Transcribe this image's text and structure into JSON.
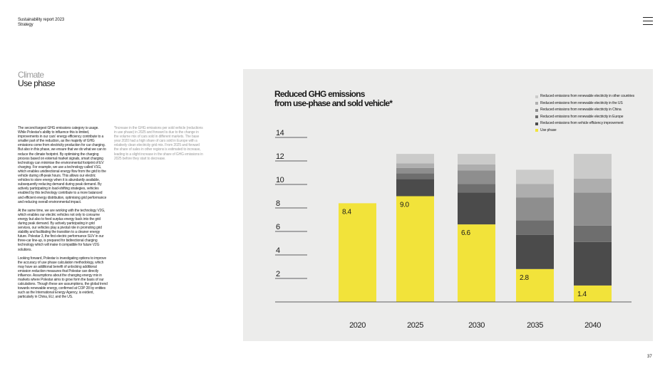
{
  "header": {
    "report": "Sustainability report 2023",
    "section": "Strategy"
  },
  "section_title": {
    "line1": "Climate",
    "line2": "Use phase"
  },
  "body_paragraphs": [
    "The second-largest GHG emissions category is usage. While Polestar's ability to influence this is limited, improvements in our cars' energy efficiency contribute to a smaller part of the reduction, as the majority of GHG emissions come from electricity production for car charging. But also in this phase, we ensure that we do what we can to reduce the climate footprint. By optimising the charging process based on external market signals, smart charging technology can minimise the environmental footprint of EV charging. For example, we use a technology called V1G, which enables unidirectional energy flow from the grid to the vehicle during off-peak hours. This allows our electric vehicles to store energy when it is abundantly available, subsequently reducing demand during peak demand. By actively participating in load-shifting strategies, vehicles enabled by this technology contribute to a more balanced and efficient energy distribution, optimising grid performance and reducing overall environmental impact.",
    "At the same time, we are working with the technology V2G, which enables our electric vehicles not only to consume energy but also to feed surplus energy back into the grid during peak demand. By actively participating in grid services, our vehicles play a pivotal role in promoting grid stability and facilitating the transition to a cleaner energy future. Polestar 3, the first electric performance SUV in our three-car line-up, is prepared for bidirectional charging technology which will make it compatible for future V2G solutions.",
    "Looking forward, Polestar is investigating options to improve the accuracy of use phase calculation methodology, which may have an additional benefit of unlocking additional emission reduction measures that Polestar can directly influence. Assumptions about the changing energy mix in markets where Polestar aims to grow form the basis of our calculations. Though these are assumptions, the global trend towards renewable energy, confirmed at COP 28 by entities such as the International Energy Agency, is evident, particularly in China, EU, and the US."
  ],
  "footnote": "*Increase in the GHG emissions per sold vehicle (reductions in use phase) in 2025 and forward is due to the change in the volume mix of cars sold in different markets. The base year 2020 had a high share of cars sold in Europe with a relatively clean electricity grid mix. From 2025 and forward the share of sales in other regions is estimated to increase, leading to a slight increase in the share of GHG emissions in 2025 before they start to decrease.",
  "chart_data": {
    "type": "bar",
    "stacked": true,
    "title": "Reduced GHG emissions from use-phase and sold vehicle*",
    "title_lines": [
      "Reduced GHG emissions",
      "from use-phase and sold vehicle*"
    ],
    "categories": [
      "2020",
      "2025",
      "2030",
      "2035",
      "2040"
    ],
    "ylim": [
      0,
      14
    ],
    "yticks": [
      "2",
      "4",
      "6",
      "8",
      "10",
      "12",
      "14"
    ],
    "grid": false,
    "legend_position": "top-right",
    "series": [
      {
        "name": "Use phase",
        "color": "#f2e33a",
        "values": [
          8.4,
          9.0,
          6.6,
          2.8,
          1.4
        ]
      },
      {
        "name": "Reduced emissions from vehicle efficiency improvement",
        "color": "#4b4b4b",
        "values": [
          0,
          1.45,
          2.7,
          2.9,
          3.7
        ]
      },
      {
        "name": "Reduced emissions from renewable electricity in Europe",
        "color": "#6e6e6e",
        "values": [
          0,
          0.5,
          0.75,
          1.25,
          1.4
        ]
      },
      {
        "name": "Reduced emissions from renewable electricity in China",
        "color": "#8e8e8e",
        "values": [
          0,
          0.45,
          1.15,
          1.95,
          2.8
        ]
      },
      {
        "name": "Reduced emissions from renewable electricity in the US",
        "color": "#aeaeae",
        "values": [
          0,
          0.4,
          0.5,
          1.15,
          1.2
        ]
      },
      {
        "name": "Reduced emissions from renewable electricity in other countries",
        "color": "#cbcbca",
        "values": [
          0,
          0.8,
          0.9,
          1.2,
          2.1
        ]
      }
    ],
    "data_labels": [
      "8.4",
      "9.0",
      "6.6",
      "2.8",
      "1.4"
    ]
  },
  "page_number": "37"
}
